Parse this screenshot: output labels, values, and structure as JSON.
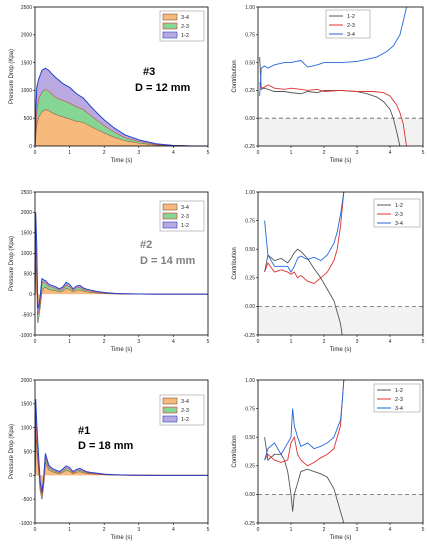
{
  "figure": {
    "rows": [
      {
        "id": "#3",
        "label": "D = 12 mm",
        "color": "#000000"
      },
      {
        "id": "#2",
        "label": "D = 14 mm",
        "color": "#808080"
      },
      {
        "id": "#1",
        "label": "D = 18 mm",
        "color": "#000000"
      }
    ]
  },
  "chart_data": [
    {
      "type": "area",
      "stacked": true,
      "xlabel": "Time (s)",
      "ylabel": "Pressure Drop (Kpa)",
      "xlim": [
        0,
        5
      ],
      "ylim": [
        0,
        2500
      ],
      "xticks": [
        0,
        1,
        2,
        3,
        4,
        5
      ],
      "yticks": [
        0,
        500,
        1000,
        1500,
        2000,
        2500
      ],
      "x": [
        0,
        0.02,
        0.05,
        0.1,
        0.2,
        0.3,
        0.4,
        0.5,
        0.6,
        0.7,
        0.8,
        0.9,
        1.0,
        1.2,
        1.4,
        1.6,
        1.8,
        2.0,
        2.3,
        2.6,
        3.0,
        3.5,
        4.0,
        4.5,
        5.0
      ],
      "series": [
        {
          "name": "3-4",
          "color": "#f7b97c",
          "line": "#7a5a3a",
          "values": [
            0,
            200,
            400,
            520,
            620,
            660,
            640,
            600,
            570,
            550,
            530,
            510,
            490,
            450,
            430,
            360,
            300,
            240,
            160,
            100,
            55,
            20,
            5,
            0,
            0
          ]
        },
        {
          "name": "2-3",
          "color": "#85d695",
          "line": "#e03030",
          "values": [
            0,
            100,
            250,
            330,
            360,
            360,
            350,
            330,
            310,
            300,
            295,
            290,
            285,
            260,
            230,
            200,
            165,
            130,
            90,
            55,
            30,
            12,
            4,
            0,
            0
          ]
        },
        {
          "name": "1-2",
          "color": "#b9a9e0",
          "line": "#2244cc",
          "values": [
            0,
            300,
            400,
            340,
            380,
            380,
            370,
            360,
            350,
            330,
            300,
            290,
            280,
            230,
            200,
            160,
            125,
            100,
            70,
            45,
            25,
            8,
            1,
            0,
            0
          ]
        }
      ]
    },
    {
      "type": "line",
      "xlabel": "Time (s)",
      "ylabel": "Contribution",
      "xlim": [
        0,
        5
      ],
      "ylim": [
        -0.25,
        1.0
      ],
      "xticks": [
        0,
        1,
        2,
        3,
        4,
        5
      ],
      "yticks": [
        -0.25,
        0.0,
        0.25,
        0.5,
        0.75,
        1.0
      ],
      "series": [
        {
          "name": "1-2",
          "color": "#555555",
          "x": [
            0.05,
            0.1,
            0.2,
            0.3,
            0.5,
            0.8,
            1.0,
            1.3,
            1.5,
            1.8,
            2.0,
            2.5,
            3.0,
            3.3,
            3.6,
            3.8,
            4.0,
            4.1,
            4.2,
            4.3
          ],
          "values": [
            0.55,
            0.26,
            0.27,
            0.26,
            0.24,
            0.24,
            0.23,
            0.22,
            0.24,
            0.23,
            0.25,
            0.25,
            0.24,
            0.22,
            0.19,
            0.15,
            0.08,
            0.0,
            -0.12,
            -0.25
          ]
        },
        {
          "name": "2-3",
          "color": "#e03030",
          "x": [
            0.05,
            0.1,
            0.2,
            0.3,
            0.5,
            0.8,
            1.0,
            1.3,
            1.5,
            1.8,
            2.0,
            2.5,
            3.0,
            3.5,
            3.8,
            4.0,
            4.2,
            4.3,
            4.4,
            4.5
          ],
          "values": [
            0.32,
            0.27,
            0.28,
            0.3,
            0.27,
            0.26,
            0.27,
            0.26,
            0.25,
            0.26,
            0.24,
            0.25,
            0.24,
            0.24,
            0.23,
            0.2,
            0.12,
            0.05,
            -0.05,
            -0.25
          ]
        },
        {
          "name": "3-4",
          "color": "#2266dd",
          "x": [
            0.05,
            0.1,
            0.2,
            0.3,
            0.5,
            0.8,
            1.0,
            1.3,
            1.5,
            1.8,
            2.0,
            2.5,
            3.0,
            3.3,
            3.6,
            3.9,
            4.1,
            4.3,
            4.4,
            4.5
          ],
          "values": [
            0.2,
            0.45,
            0.47,
            0.45,
            0.48,
            0.5,
            0.5,
            0.52,
            0.46,
            0.48,
            0.5,
            0.5,
            0.51,
            0.53,
            0.55,
            0.6,
            0.65,
            0.75,
            0.87,
            1.0
          ]
        }
      ]
    },
    {
      "type": "area",
      "stacked": true,
      "xlabel": "Time (s)",
      "ylabel": "Pressure Drop (Kpa)",
      "xlim": [
        0,
        5
      ],
      "ylim": [
        -1000,
        2500
      ],
      "xticks": [
        0,
        1,
        2,
        3,
        4,
        5
      ],
      "yticks": [
        -1000,
        -500,
        0,
        500,
        1000,
        1500,
        2000,
        2500
      ],
      "x": [
        0,
        0.02,
        0.05,
        0.08,
        0.1,
        0.15,
        0.2,
        0.25,
        0.3,
        0.4,
        0.5,
        0.6,
        0.7,
        0.8,
        0.9,
        1.0,
        1.1,
        1.2,
        1.3,
        1.4,
        1.5,
        1.6,
        1.8,
        2.0,
        2.3,
        2.6,
        3.0,
        3.5,
        4.0,
        5.0
      ],
      "series": [
        {
          "name": "3-4",
          "color": "#f7b97c",
          "line": "#7a5a3a",
          "values": [
            0,
            900,
            500,
            -700,
            -600,
            -300,
            100,
            150,
            180,
            120,
            100,
            90,
            60,
            80,
            150,
            120,
            60,
            100,
            110,
            80,
            60,
            50,
            30,
            20,
            10,
            5,
            2,
            0,
            0,
            0
          ]
        },
        {
          "name": "2-3",
          "color": "#85d695",
          "line": "#e03030",
          "values": [
            0,
            500,
            300,
            200,
            150,
            150,
            200,
            140,
            100,
            80,
            70,
            60,
            40,
            50,
            80,
            70,
            40,
            60,
            60,
            40,
            35,
            30,
            20,
            12,
            6,
            3,
            1,
            0,
            0,
            0
          ]
        },
        {
          "name": "1-2",
          "color": "#b9a9e0",
          "line": "#2244cc",
          "values": [
            0,
            600,
            400,
            200,
            100,
            100,
            80,
            60,
            50,
            40,
            40,
            30,
            30,
            40,
            60,
            50,
            30,
            40,
            40,
            30,
            25,
            20,
            15,
            8,
            4,
            2,
            1,
            0,
            0,
            0
          ]
        }
      ]
    },
    {
      "type": "line",
      "xlabel": "Time (s)",
      "ylabel": "Contribution",
      "xlim": [
        0,
        5
      ],
      "ylim": [
        -0.25,
        1.0
      ],
      "xticks": [
        0,
        1,
        2,
        3,
        4,
        5
      ],
      "yticks": [
        -0.25,
        0.0,
        0.25,
        0.5,
        0.75,
        1.0
      ],
      "series": [
        {
          "name": "1-2",
          "color": "#555555",
          "x": [
            0.2,
            0.3,
            0.5,
            0.7,
            0.9,
            1.0,
            1.1,
            1.2,
            1.3,
            1.4,
            1.5,
            1.7,
            1.9,
            2.1,
            2.3,
            2.4,
            2.5,
            2.55
          ],
          "values": [
            0.3,
            0.45,
            0.4,
            0.42,
            0.38,
            0.42,
            0.47,
            0.5,
            0.48,
            0.45,
            0.42,
            0.33,
            0.25,
            0.15,
            0.05,
            -0.05,
            -0.15,
            -0.25
          ]
        },
        {
          "name": "2-3",
          "color": "#e03030",
          "x": [
            0.2,
            0.3,
            0.5,
            0.7,
            0.9,
            1.0,
            1.1,
            1.2,
            1.3,
            1.5,
            1.7,
            1.9,
            2.1,
            2.3,
            2.4,
            2.5,
            2.6
          ],
          "values": [
            0.3,
            0.38,
            0.3,
            0.32,
            0.3,
            0.28,
            0.3,
            0.25,
            0.27,
            0.22,
            0.2,
            0.25,
            0.3,
            0.4,
            0.5,
            0.7,
            1.0
          ]
        },
        {
          "name": "3-4",
          "color": "#2266dd",
          "x": [
            0.2,
            0.3,
            0.5,
            0.7,
            0.9,
            1.0,
            1.1,
            1.2,
            1.3,
            1.5,
            1.7,
            1.9,
            2.1,
            2.3,
            2.4,
            2.5,
            2.6
          ],
          "values": [
            0.75,
            0.45,
            0.35,
            0.35,
            0.35,
            0.3,
            0.35,
            0.42,
            0.44,
            0.41,
            0.43,
            0.4,
            0.45,
            0.55,
            0.65,
            0.8,
            1.0
          ]
        }
      ]
    },
    {
      "type": "area",
      "stacked": true,
      "xlabel": "Time (s)",
      "ylabel": "Pressure Drop (Kpa)",
      "xlim": [
        0,
        5
      ],
      "ylim": [
        -1000,
        2000
      ],
      "xticks": [
        0,
        1,
        2,
        3,
        4,
        5
      ],
      "yticks": [
        -1000,
        -500,
        0,
        500,
        1000,
        1500,
        2000
      ],
      "x": [
        0,
        0.02,
        0.05,
        0.1,
        0.15,
        0.2,
        0.25,
        0.3,
        0.4,
        0.5,
        0.6,
        0.7,
        0.8,
        0.9,
        1.0,
        1.1,
        1.2,
        1.3,
        1.4,
        1.5,
        1.6,
        1.8,
        2.0,
        2.3,
        2.6,
        3.0,
        3.5,
        4.0,
        5.0
      ],
      "series": [
        {
          "name": "3-4",
          "color": "#f7b97c",
          "line": "#7a5a3a",
          "values": [
            0,
            1000,
            600,
            200,
            -300,
            -500,
            -200,
            300,
            120,
            80,
            60,
            40,
            70,
            110,
            90,
            40,
            70,
            80,
            60,
            40,
            35,
            25,
            15,
            8,
            4,
            1,
            0,
            0,
            0
          ]
        },
        {
          "name": "2-3",
          "color": "#85d695",
          "line": "#e03030",
          "values": [
            0,
            400,
            200,
            100,
            100,
            100,
            80,
            100,
            50,
            35,
            25,
            20,
            30,
            50,
            40,
            20,
            30,
            35,
            25,
            20,
            15,
            10,
            6,
            3,
            1,
            0,
            0,
            0,
            0
          ]
        },
        {
          "name": "1-2",
          "color": "#b9a9e0",
          "line": "#2244cc",
          "values": [
            0,
            200,
            300,
            150,
            80,
            50,
            50,
            60,
            40,
            30,
            25,
            20,
            30,
            40,
            35,
            20,
            25,
            30,
            20,
            15,
            12,
            8,
            4,
            2,
            1,
            0,
            0,
            0,
            0
          ]
        }
      ]
    },
    {
      "type": "line",
      "xlabel": "Time (s)",
      "ylabel": "Contribution",
      "xlim": [
        0,
        5
      ],
      "ylim": [
        -0.25,
        1.0
      ],
      "xticks": [
        0,
        1,
        2,
        3,
        4,
        5
      ],
      "yticks": [
        -0.25,
        0.0,
        0.25,
        0.5,
        0.75,
        1.0
      ],
      "series": [
        {
          "name": "1-2",
          "color": "#555555",
          "x": [
            0.2,
            0.3,
            0.5,
            0.7,
            0.8,
            0.9,
            1.0,
            1.05,
            1.1,
            1.2,
            1.3,
            1.5,
            1.7,
            1.9,
            2.1,
            2.3,
            2.4,
            2.5,
            2.6
          ],
          "values": [
            0.5,
            0.3,
            0.35,
            0.35,
            0.3,
            0.2,
            0.0,
            -0.15,
            0.0,
            0.1,
            0.2,
            0.22,
            0.2,
            0.18,
            0.15,
            0.05,
            -0.05,
            -0.15,
            -0.25
          ]
        },
        {
          "name": "2-3",
          "color": "#e03030",
          "x": [
            0.2,
            0.3,
            0.5,
            0.7,
            0.9,
            1.0,
            1.1,
            1.2,
            1.3,
            1.5,
            1.7,
            1.9,
            2.1,
            2.3,
            2.5,
            2.55,
            2.6
          ],
          "values": [
            0.3,
            0.35,
            0.3,
            0.28,
            0.3,
            0.45,
            0.5,
            0.35,
            0.3,
            0.25,
            0.28,
            0.32,
            0.35,
            0.4,
            0.6,
            0.8,
            1.0
          ]
        },
        {
          "name": "3-4",
          "color": "#2266dd",
          "x": [
            0.2,
            0.3,
            0.5,
            0.7,
            0.9,
            1.0,
            1.05,
            1.1,
            1.2,
            1.3,
            1.5,
            1.7,
            1.9,
            2.1,
            2.3,
            2.5,
            2.55,
            2.6
          ],
          "values": [
            0.3,
            0.4,
            0.45,
            0.35,
            0.45,
            0.5,
            0.75,
            0.6,
            0.5,
            0.42,
            0.45,
            0.4,
            0.42,
            0.45,
            0.5,
            0.65,
            0.8,
            1.0
          ]
        }
      ]
    }
  ]
}
